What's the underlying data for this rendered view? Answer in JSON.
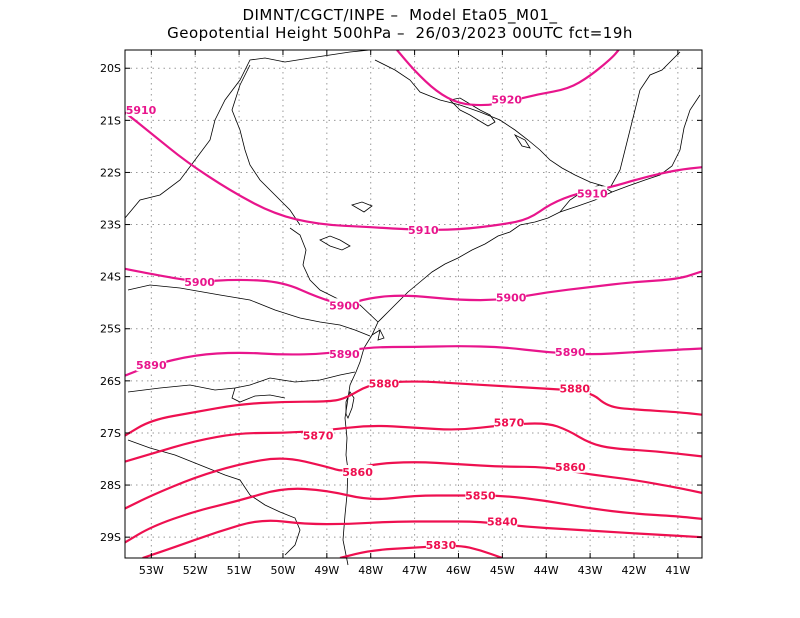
{
  "title": {
    "line1": "DIMNT/CGCT/INPE –  Model Eta05_M01_",
    "line2": "Geopotential Height 500hPa –  26/03/2023 00UTC fct=19h"
  },
  "colors": {
    "contour_magenta": "#e8158c",
    "contour_red": "#ee1050",
    "coast": "#000000",
    "grid": "#999999"
  },
  "axes": {
    "lon_min": -53.6,
    "lon_max": -40.45,
    "lat_min": -29.4,
    "lat_max": -19.65,
    "lon_ticks": [
      {
        "v": -53,
        "label": "53W"
      },
      {
        "v": -52,
        "label": "52W"
      },
      {
        "v": -51,
        "label": "51W"
      },
      {
        "v": -50,
        "label": "50W"
      },
      {
        "v": -49,
        "label": "49W"
      },
      {
        "v": -48,
        "label": "48W"
      },
      {
        "v": -47,
        "label": "47W"
      },
      {
        "v": -46,
        "label": "46W"
      },
      {
        "v": -45,
        "label": "45W"
      },
      {
        "v": -44,
        "label": "44W"
      },
      {
        "v": -43,
        "label": "43W"
      },
      {
        "v": -42,
        "label": "42W"
      },
      {
        "v": -41,
        "label": "41W"
      }
    ],
    "lat_ticks": [
      {
        "v": -20,
        "label": "20S"
      },
      {
        "v": -21,
        "label": "21S"
      },
      {
        "v": -22,
        "label": "22S"
      },
      {
        "v": -23,
        "label": "23S"
      },
      {
        "v": -24,
        "label": "24S"
      },
      {
        "v": -25,
        "label": "25S"
      },
      {
        "v": -26,
        "label": "26S"
      },
      {
        "v": -27,
        "label": "27S"
      },
      {
        "v": -28,
        "label": "28S"
      },
      {
        "v": -29,
        "label": "29S"
      }
    ],
    "grid": "dotted"
  },
  "chart_data": {
    "type": "contour_map",
    "variable": "Geopotential Height 500hPa",
    "contours": [
      {
        "level": 5920,
        "label": "5920",
        "color": "#e8158c",
        "points": [
          [
            -47.4,
            -19.65
          ],
          [
            -47.0,
            -20.05
          ],
          [
            -46.5,
            -20.45
          ],
          [
            -46.0,
            -20.68
          ],
          [
            -45.4,
            -20.72
          ],
          [
            -44.9,
            -20.65
          ],
          [
            -44.2,
            -20.5
          ],
          [
            -43.5,
            -20.4
          ],
          [
            -43.0,
            -20.15
          ],
          [
            -42.5,
            -19.8
          ],
          [
            -42.35,
            -19.65
          ]
        ],
        "labels": [
          {
            "lon": -44.9,
            "lat": -20.6,
            "text": "5920"
          }
        ]
      },
      {
        "level": 5910,
        "label": "5910",
        "color": "#e8158c",
        "points": [
          [
            -53.6,
            -20.85
          ],
          [
            -53.0,
            -21.25
          ],
          [
            -52.2,
            -21.8
          ],
          [
            -51.2,
            -22.35
          ],
          [
            -50.2,
            -22.8
          ],
          [
            -49.2,
            -23.0
          ],
          [
            -48.0,
            -23.05
          ],
          [
            -47.0,
            -23.1
          ],
          [
            -46.0,
            -23.1
          ],
          [
            -45.0,
            -23.0
          ],
          [
            -44.4,
            -22.9
          ],
          [
            -43.9,
            -22.6
          ],
          [
            -43.3,
            -22.4
          ],
          [
            -42.6,
            -22.3
          ],
          [
            -41.8,
            -22.1
          ],
          [
            -41.0,
            -21.95
          ],
          [
            -40.45,
            -21.9
          ]
        ],
        "labels": [
          {
            "lon": -53.6,
            "lat": -20.8,
            "text": "5910"
          },
          {
            "lon": -46.8,
            "lat": -23.1,
            "text": "5910"
          },
          {
            "lon": -42.95,
            "lat": -22.4,
            "text": "5910"
          }
        ]
      },
      {
        "level": 5900,
        "label": "5900",
        "color": "#e8158c",
        "points": [
          [
            -53.6,
            -23.85
          ],
          [
            -53.0,
            -23.95
          ],
          [
            -52.0,
            -24.1
          ],
          [
            -51.0,
            -24.05
          ],
          [
            -50.0,
            -24.1
          ],
          [
            -49.2,
            -24.4
          ],
          [
            -48.6,
            -24.55
          ],
          [
            -48.0,
            -24.4
          ],
          [
            -47.2,
            -24.35
          ],
          [
            -46.0,
            -24.45
          ],
          [
            -45.0,
            -24.45
          ],
          [
            -44.0,
            -24.3
          ],
          [
            -43.0,
            -24.2
          ],
          [
            -42.0,
            -24.1
          ],
          [
            -41.0,
            -24.05
          ],
          [
            -40.45,
            -23.9
          ]
        ],
        "labels": [
          {
            "lon": -51.9,
            "lat": -24.1,
            "text": "5900"
          },
          {
            "lon": -48.6,
            "lat": -24.55,
            "text": "5900"
          },
          {
            "lon": -44.8,
            "lat": -24.4,
            "text": "5900"
          }
        ]
      },
      {
        "level": 5890,
        "label": "5890",
        "color": "#e8158c",
        "points": [
          [
            -53.6,
            -25.9
          ],
          [
            -53.0,
            -25.7
          ],
          [
            -52.0,
            -25.5
          ],
          [
            -51.0,
            -25.45
          ],
          [
            -50.0,
            -25.5
          ],
          [
            -49.0,
            -25.48
          ],
          [
            -48.0,
            -25.35
          ],
          [
            -47.0,
            -25.35
          ],
          [
            -46.0,
            -25.33
          ],
          [
            -45.0,
            -25.35
          ],
          [
            -44.0,
            -25.45
          ],
          [
            -43.0,
            -25.5
          ],
          [
            -42.0,
            -25.45
          ],
          [
            -41.0,
            -25.4
          ],
          [
            -40.45,
            -25.38
          ]
        ],
        "labels": [
          {
            "lon": -53.0,
            "lat": -25.7,
            "text": "5890"
          },
          {
            "lon": -48.6,
            "lat": -25.48,
            "text": "5890"
          },
          {
            "lon": -43.45,
            "lat": -25.45,
            "text": "5890"
          }
        ]
      },
      {
        "level": 5880,
        "label": "5880",
        "color": "#ee1050",
        "points": [
          [
            -53.6,
            -27.05
          ],
          [
            -53.0,
            -26.75
          ],
          [
            -52.0,
            -26.6
          ],
          [
            -51.0,
            -26.45
          ],
          [
            -50.0,
            -26.4
          ],
          [
            -49.0,
            -26.4
          ],
          [
            -48.6,
            -26.35
          ],
          [
            -48.0,
            -26.05
          ],
          [
            -47.0,
            -26.0
          ],
          [
            -46.0,
            -26.05
          ],
          [
            -45.0,
            -26.1
          ],
          [
            -44.0,
            -26.15
          ],
          [
            -43.0,
            -26.2
          ],
          [
            -42.6,
            -26.5
          ],
          [
            -42.0,
            -26.55
          ],
          [
            -41.0,
            -26.6
          ],
          [
            -40.45,
            -26.65
          ]
        ],
        "labels": [
          {
            "lon": -47.7,
            "lat": -26.05,
            "text": "5880"
          },
          {
            "lon": -43.35,
            "lat": -26.15,
            "text": "5880"
          }
        ]
      },
      {
        "level": 5870,
        "label": "5870",
        "color": "#ee1050",
        "points": [
          [
            -53.6,
            -27.55
          ],
          [
            -53.0,
            -27.4
          ],
          [
            -52.0,
            -27.15
          ],
          [
            -51.0,
            -27.0
          ],
          [
            -50.0,
            -27.0
          ],
          [
            -49.0,
            -26.95
          ],
          [
            -48.0,
            -26.85
          ],
          [
            -47.0,
            -26.9
          ],
          [
            -46.0,
            -26.95
          ],
          [
            -45.0,
            -26.85
          ],
          [
            -44.0,
            -26.8
          ],
          [
            -43.5,
            -26.95
          ],
          [
            -43.0,
            -27.2
          ],
          [
            -42.5,
            -27.3
          ],
          [
            -41.5,
            -27.35
          ],
          [
            -40.45,
            -27.45
          ]
        ],
        "labels": [
          {
            "lon": -49.2,
            "lat": -27.05,
            "text": "5870"
          },
          {
            "lon": -44.85,
            "lat": -26.8,
            "text": "5870"
          }
        ]
      },
      {
        "level": 5860,
        "label": "5860",
        "color": "#ee1050",
        "points": [
          [
            -53.6,
            -28.45
          ],
          [
            -53.0,
            -28.2
          ],
          [
            -52.0,
            -27.85
          ],
          [
            -51.0,
            -27.6
          ],
          [
            -50.0,
            -27.45
          ],
          [
            -49.0,
            -27.65
          ],
          [
            -48.6,
            -27.75
          ],
          [
            -48.0,
            -27.6
          ],
          [
            -47.0,
            -27.55
          ],
          [
            -46.0,
            -27.6
          ],
          [
            -45.0,
            -27.65
          ],
          [
            -44.0,
            -27.65
          ],
          [
            -43.0,
            -27.8
          ],
          [
            -42.0,
            -27.9
          ],
          [
            -41.0,
            -28.05
          ],
          [
            -40.45,
            -28.15
          ]
        ],
        "labels": [
          {
            "lon": -48.3,
            "lat": -27.75,
            "text": "5860"
          },
          {
            "lon": -43.45,
            "lat": -27.65,
            "text": "5860"
          }
        ]
      },
      {
        "level": 5850,
        "label": "5850",
        "color": "#ee1050",
        "points": [
          [
            -53.6,
            -29.1
          ],
          [
            -53.0,
            -28.8
          ],
          [
            -52.0,
            -28.5
          ],
          [
            -51.0,
            -28.3
          ],
          [
            -50.0,
            -28.05
          ],
          [
            -49.0,
            -28.1
          ],
          [
            -48.0,
            -28.3
          ],
          [
            -47.0,
            -28.2
          ],
          [
            -46.0,
            -28.2
          ],
          [
            -45.0,
            -28.2
          ],
          [
            -44.0,
            -28.3
          ],
          [
            -43.0,
            -28.45
          ],
          [
            -42.0,
            -28.55
          ],
          [
            -41.0,
            -28.6
          ],
          [
            -40.45,
            -28.65
          ]
        ],
        "labels": [
          {
            "lon": -45.5,
            "lat": -28.2,
            "text": "5850"
          }
        ]
      },
      {
        "level": 5840,
        "label": "5840",
        "color": "#ee1050",
        "points": [
          [
            -53.2,
            -29.4
          ],
          [
            -52.5,
            -29.2
          ],
          [
            -51.5,
            -28.9
          ],
          [
            -50.5,
            -28.65
          ],
          [
            -49.5,
            -28.75
          ],
          [
            -48.5,
            -28.75
          ],
          [
            -47.5,
            -28.7
          ],
          [
            -46.5,
            -28.7
          ],
          [
            -45.5,
            -28.7
          ],
          [
            -44.5,
            -28.8
          ],
          [
            -43.5,
            -28.85
          ],
          [
            -42.5,
            -28.9
          ],
          [
            -41.5,
            -28.95
          ],
          [
            -40.45,
            -29.0
          ]
        ],
        "labels": [
          {
            "lon": -45.0,
            "lat": -28.7,
            "text": "5840"
          }
        ]
      },
      {
        "level": 5830,
        "label": "5830",
        "color": "#ee1050",
        "points": [
          [
            -48.7,
            -29.4
          ],
          [
            -48.0,
            -29.25
          ],
          [
            -47.0,
            -29.2
          ],
          [
            -46.0,
            -29.15
          ],
          [
            -45.5,
            -29.25
          ],
          [
            -45.0,
            -29.4
          ]
        ],
        "labels": [
          {
            "lon": -46.4,
            "lat": -29.15,
            "text": "5830"
          }
        ]
      }
    ]
  }
}
